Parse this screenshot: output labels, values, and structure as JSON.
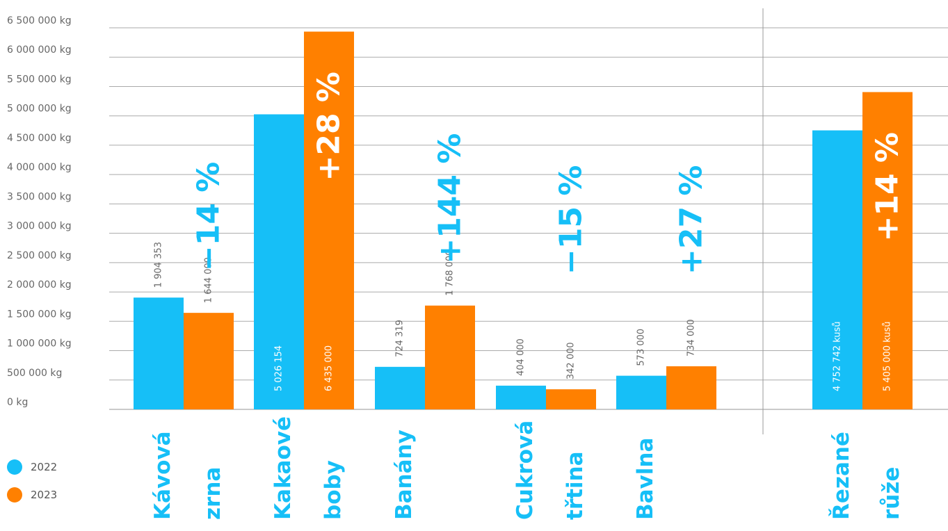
{
  "chart_data": {
    "type": "bar",
    "categories": [
      [
        "Kávová",
        "zrna"
      ],
      [
        "Kakaové",
        "boby"
      ],
      [
        "Banány"
      ],
      [
        "Cukrová",
        "třtina"
      ],
      [
        "Bavlna"
      ],
      [
        "Řezané",
        "růže"
      ]
    ],
    "series": [
      {
        "name": "2022",
        "values": [
          1904353,
          5026154,
          724319,
          404000,
          573000,
          4752742
        ],
        "labels": [
          "1 904 353",
          "5 026 154",
          "724 319",
          "404 000",
          "573 000",
          "4 752 742 kusů"
        ]
      },
      {
        "name": "2023",
        "values": [
          1644000,
          6435000,
          1768000,
          342000,
          734000,
          5405000
        ],
        "labels": [
          "1 644 000",
          "6 435 000",
          "1 768 000",
          "342 000",
          "734 000",
          "5 405 000 kusů"
        ]
      }
    ],
    "changes": [
      "−14 %",
      "+28 %",
      "+144 %",
      "−15 %",
      "+27 %",
      "+14 %"
    ],
    "y_ticks": [
      "0 kg",
      "500 000 kg",
      "1 000 000 kg",
      "1 500 000 kg",
      "2 000 000 kg",
      "2 500 000 kg",
      "3 000 000 kg",
      "3 500 000 kg",
      "4 000 000 kg",
      "4 500 000 kg",
      "5 000 000 kg",
      "5 500 000 kg",
      "6 000 000 kg",
      "6 500 000 kg"
    ],
    "ylim": [
      0,
      6500000
    ],
    "separator_before_category": 5,
    "grid": true,
    "legend_position": "bottom-left",
    "colors": {
      "series_2022": "#16bff7",
      "series_2023": "#ff8000",
      "text_gray": "#666666",
      "grid": "#aaaaaa"
    }
  }
}
